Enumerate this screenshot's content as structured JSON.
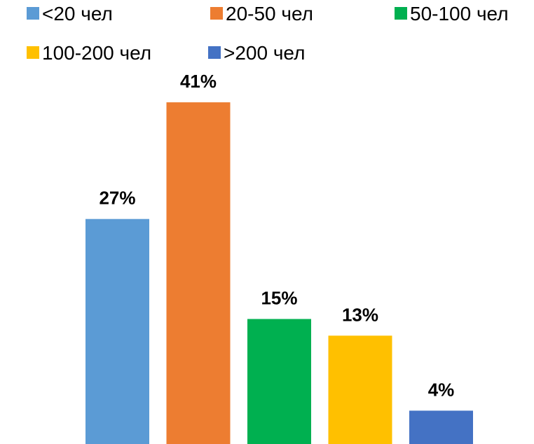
{
  "chart_data": {
    "type": "bar",
    "categories": [
      "<20 чел",
      "20-50 чел",
      "50-100 чел",
      "100-200 чел",
      ">200 чел"
    ],
    "series": [
      {
        "values": [
          27,
          41,
          15,
          13,
          4
        ],
        "data_labels": [
          "27%",
          "41%",
          "15%",
          "13%",
          "4%"
        ]
      }
    ],
    "colors": [
      "#5b9bd5",
      "#ed7d31",
      "#00b050",
      "#ffc000",
      "#4472c4"
    ],
    "legend": {
      "position": "top",
      "entries": [
        "<20 чел",
        "20-50 чел",
        "50-100 чел",
        "100-200 чел",
        ">200 чел"
      ]
    },
    "title": "",
    "xlabel": "",
    "ylabel": "",
    "ylim": [
      0,
      45
    ],
    "grid": false,
    "axes_visible": false
  }
}
